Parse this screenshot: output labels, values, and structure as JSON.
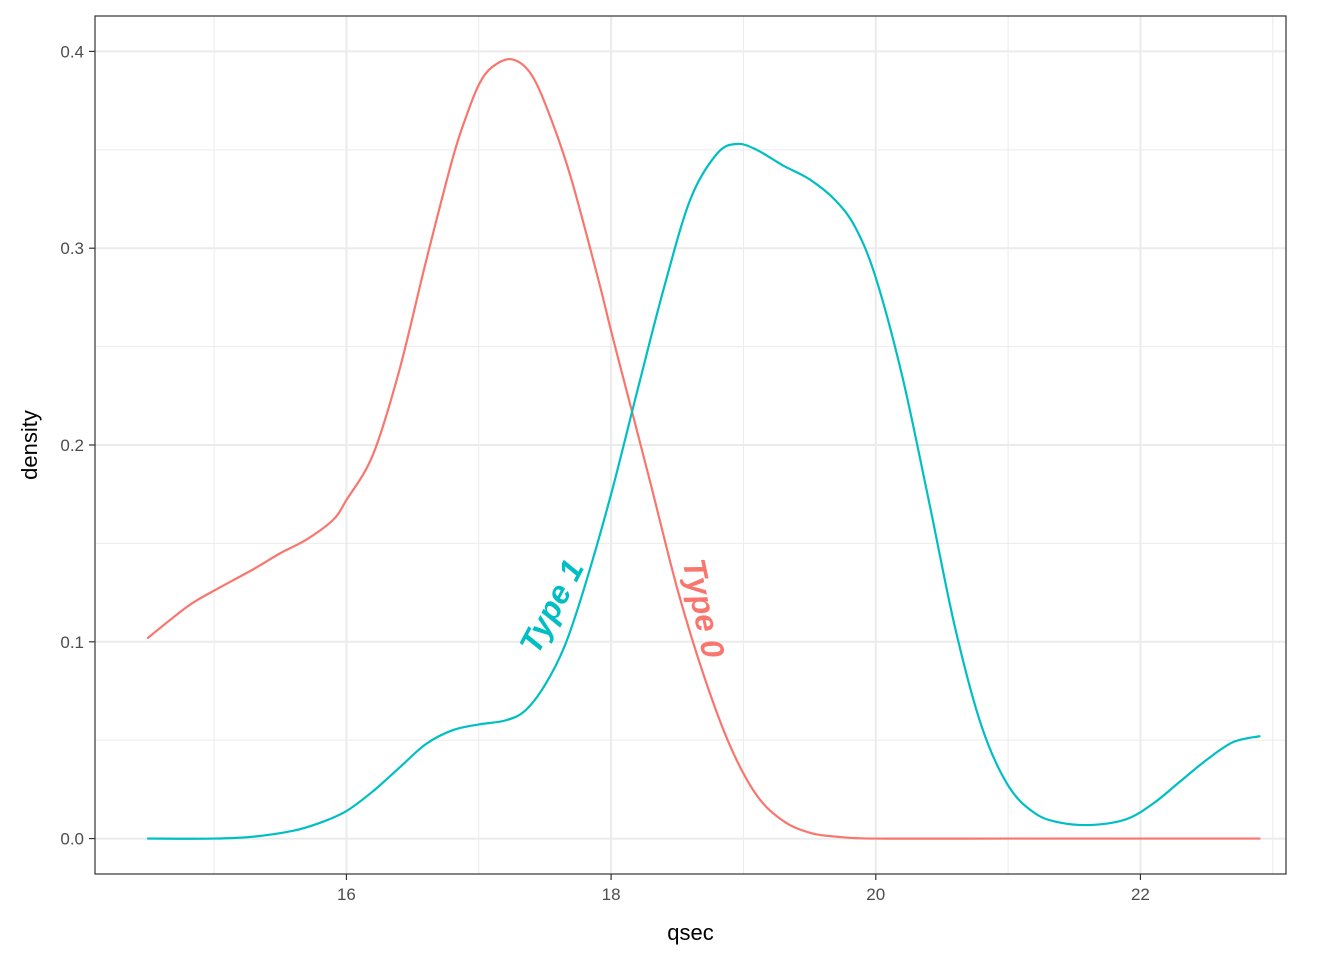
{
  "chart_data": {
    "type": "line",
    "xlabel": "qsec",
    "ylabel": "density",
    "xlim": [
      14.1,
      23.1
    ],
    "ylim": [
      -0.018,
      0.418
    ],
    "x_ticks": [
      16,
      18,
      20,
      22
    ],
    "x_tick_labels": [
      "16",
      "18",
      "20",
      "22"
    ],
    "x_minor_ticks": [
      15,
      17,
      19,
      21,
      23
    ],
    "y_ticks": [
      0.0,
      0.1,
      0.2,
      0.3,
      0.4
    ],
    "y_tick_labels": [
      "0.0",
      "0.1",
      "0.2",
      "0.3",
      "0.4"
    ],
    "y_minor_ticks": [
      0.05,
      0.15,
      0.25,
      0.35
    ],
    "grid": true,
    "legend": "none",
    "series": [
      {
        "name": "Type 0",
        "color": "#F8766D",
        "label_rotation_deg": 78,
        "label_anchor": [
          18.7,
          0.117
        ],
        "points": [
          [
            14.5,
            0.102
          ],
          [
            14.8,
            0.118
          ],
          [
            15.0,
            0.126
          ],
          [
            15.3,
            0.137
          ],
          [
            15.5,
            0.145
          ],
          [
            15.7,
            0.152
          ],
          [
            15.9,
            0.162
          ],
          [
            16.0,
            0.172
          ],
          [
            16.2,
            0.195
          ],
          [
            16.4,
            0.238
          ],
          [
            16.6,
            0.293
          ],
          [
            16.8,
            0.345
          ],
          [
            16.9,
            0.366
          ],
          [
            17.0,
            0.383
          ],
          [
            17.1,
            0.392
          ],
          [
            17.25,
            0.396
          ],
          [
            17.4,
            0.388
          ],
          [
            17.55,
            0.365
          ],
          [
            17.7,
            0.335
          ],
          [
            17.9,
            0.285
          ],
          [
            18.0,
            0.258
          ],
          [
            18.1,
            0.232
          ],
          [
            18.3,
            0.18
          ],
          [
            18.5,
            0.127
          ],
          [
            18.7,
            0.083
          ],
          [
            18.9,
            0.047
          ],
          [
            19.1,
            0.022
          ],
          [
            19.3,
            0.009
          ],
          [
            19.5,
            0.003
          ],
          [
            19.7,
            0.001
          ],
          [
            20.0,
            0.0
          ],
          [
            21.0,
            0.0
          ],
          [
            22.0,
            0.0
          ],
          [
            22.9,
            0.0
          ]
        ]
      },
      {
        "name": "Type 1",
        "color": "#00BFC4",
        "label_rotation_deg": -62,
        "label_anchor": [
          17.55,
          0.118
        ],
        "points": [
          [
            14.5,
            0.0
          ],
          [
            15.0,
            0.0
          ],
          [
            15.3,
            0.001
          ],
          [
            15.6,
            0.004
          ],
          [
            15.8,
            0.008
          ],
          [
            16.0,
            0.014
          ],
          [
            16.2,
            0.024
          ],
          [
            16.4,
            0.036
          ],
          [
            16.6,
            0.048
          ],
          [
            16.8,
            0.055
          ],
          [
            17.0,
            0.058
          ],
          [
            17.2,
            0.06
          ],
          [
            17.35,
            0.065
          ],
          [
            17.5,
            0.078
          ],
          [
            17.65,
            0.098
          ],
          [
            17.8,
            0.128
          ],
          [
            18.0,
            0.175
          ],
          [
            18.2,
            0.228
          ],
          [
            18.4,
            0.28
          ],
          [
            18.6,
            0.325
          ],
          [
            18.8,
            0.348
          ],
          [
            18.95,
            0.353
          ],
          [
            19.1,
            0.35
          ],
          [
            19.3,
            0.342
          ],
          [
            19.5,
            0.335
          ],
          [
            19.7,
            0.324
          ],
          [
            19.85,
            0.31
          ],
          [
            20.0,
            0.285
          ],
          [
            20.2,
            0.235
          ],
          [
            20.4,
            0.172
          ],
          [
            20.6,
            0.107
          ],
          [
            20.8,
            0.057
          ],
          [
            21.0,
            0.027
          ],
          [
            21.2,
            0.013
          ],
          [
            21.4,
            0.008
          ],
          [
            21.65,
            0.007
          ],
          [
            21.9,
            0.01
          ],
          [
            22.1,
            0.018
          ],
          [
            22.3,
            0.029
          ],
          [
            22.5,
            0.04
          ],
          [
            22.7,
            0.049
          ],
          [
            22.9,
            0.052
          ]
        ]
      }
    ]
  }
}
